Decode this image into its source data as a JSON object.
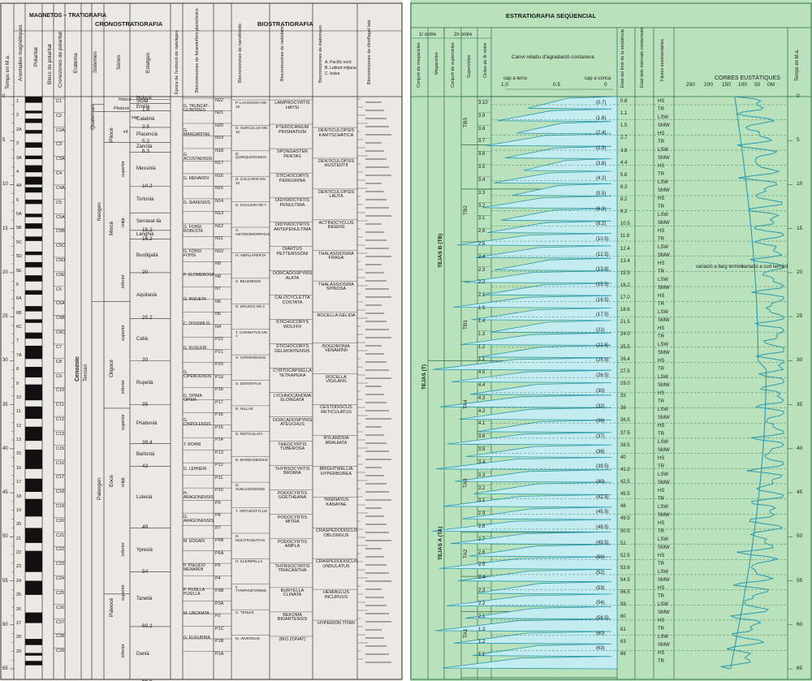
{
  "left_chart": {
    "header": {
      "magnetostratigraphy": "MAGNETOS – TRATIGRAFIA",
      "chronostratigraphy": "CRONOSTRATIGRAFIA",
      "biostratigraphy": "BIOSTRATIGRAFIA"
    },
    "column_labels": {
      "time": "Temps en M.a.",
      "anomalies": "Anomalies magnètiques",
      "polarity": "Polaritat",
      "polarity_blocks": "Blocs de polaritat",
      "polarity_chrons": "Cronozones de polaritat",
      "eratem": "Eratema",
      "systems": "Sistemes",
      "series": "Sèries",
      "stages": "Estatges",
      "extinction": "Època de l'extinció de natelàges",
      "foram_zones": "Biocronozones de foraminífers planctònics",
      "nanno_zones": "Biocronozones de nanofòssils",
      "radiolaria_zones": "Biocronozones de radiolaris",
      "diatom_zones": "Biocronozones de diatomees",
      "diatom_sub": [
        "A. Pacífic nord",
        "B. Latitud mitjana",
        "C. baixa"
      ],
      "dino_zones": "Biocronozones de dinoflagel·lats"
    },
    "time_ticks": [
      "0",
      "5",
      "10",
      "15",
      "20",
      "25",
      "30",
      "35",
      "40",
      "45",
      "50",
      "55",
      "60",
      "65"
    ],
    "eras": [
      "Cenozoic"
    ],
    "systems": [
      "Quaternari",
      "Terciari",
      "Neogen",
      "Paleogen"
    ],
    "series": [
      "Holocè",
      "Plistocè",
      "Pliocè",
      "Miocè",
      "Oligocè",
      "Eocè",
      "Paleocè"
    ],
    "subseries": [
      "sup.",
      "inf.",
      "superior",
      "mitjà",
      "inferior",
      "superior",
      "inferior",
      "superior",
      "mitjà",
      "inferior",
      "superior",
      "inferior"
    ],
    "stages": [
      {
        "name": "Holocè",
        "age": ""
      },
      {
        "name": "Siciià",
        "age": ""
      },
      {
        "name": "Emilià",
        "age": ""
      },
      {
        "name": "Calabrià",
        "age": "1.6"
      },
      {
        "name": "Placencià",
        "age": "3.5"
      },
      {
        "name": "Zanclià",
        "age": "5.2"
      },
      {
        "name": "Messinià",
        "age": "6.3"
      },
      {
        "name": "Tortonià",
        "age": "10.2"
      },
      {
        "name": "Serraval·lià",
        "age": ""
      },
      {
        "name": "Langhià",
        "age": "15.2"
      },
      {
        "name": "Burdigalià",
        "age": "16.2"
      },
      {
        "name": "Aquitanià",
        "age": "20"
      },
      {
        "name": "Catià",
        "age": "25.2"
      },
      {
        "name": "Rupelià",
        "age": "30"
      },
      {
        "name": "Priabonià",
        "age": "35"
      },
      {
        "name": "Bartonià",
        "age": "39.4"
      },
      {
        "name": "Lutecià",
        "age": "42"
      },
      {
        "name": "Ypresià",
        "age": "49"
      },
      {
        "name": "Tanetià",
        "age": "54"
      },
      {
        "name": "Danià",
        "age": "60.2"
      },
      {
        "name": "",
        "age": "66.5"
      }
    ],
    "polarity_numbers": [
      "1",
      "2",
      "2A",
      "3",
      "3A",
      "4",
      "4A",
      "5",
      "5A",
      "5B",
      "5C",
      "5D",
      "5E",
      "6",
      "6A",
      "6B",
      "6C",
      "7",
      "7A",
      "8",
      "9",
      "10",
      "11",
      "12",
      "13",
      "15",
      "16",
      "17",
      "18",
      "19",
      "20",
      "21",
      "22",
      "23",
      "24",
      "25",
      "26",
      "27",
      "28",
      "29"
    ],
    "chrons": [
      "C1",
      "C2",
      "C2A",
      "C3",
      "C3A",
      "C4",
      "C4A",
      "C5",
      "C5A",
      "C5B",
      "C5C",
      "C5D",
      "C5E",
      "C6",
      "C6A",
      "C6B",
      "C6C",
      "C7",
      "C8",
      "C9",
      "C10",
      "C11",
      "C12",
      "C13",
      "C15",
      "C16",
      "C17",
      "C18",
      "C19",
      "C20",
      "C21",
      "C22",
      "C23",
      "C24",
      "C25",
      "C26",
      "C27",
      "C28",
      "C29"
    ],
    "foram_zones": [
      "N22",
      "N21",
      "N20",
      "N19",
      "N18",
      "N17",
      "N16",
      "N15",
      "N14",
      "N13",
      "N12",
      "N11",
      "N10",
      "N9",
      "N8",
      "N7",
      "N6",
      "N5",
      "N4",
      "P22",
      "P21",
      "P20",
      "P19",
      "P18",
      "P17",
      "P16",
      "P15",
      "P14",
      "P13",
      "P12",
      "P11",
      "P10",
      "P9",
      "P8",
      "P7",
      "P6B",
      "P6A",
      "P5",
      "P4",
      "P3B",
      "P3A",
      "P2",
      "P1C",
      "P1B",
      "P1A"
    ],
    "foram_names": [
      "G. TRUNCAT-ULINOIDES",
      "G. MARGARITAE",
      "G. ACOSTAENSIS",
      "G. MENARDII",
      "G. SIAKENSIS",
      "G. FOHSI ROBUSTA",
      "G. FOHSI FOHSI",
      "P. GLOMEROSA",
      "G. INSUETA",
      "C. DISSIMILIS",
      "G. KUGLERI",
      "G. CIPEROENSIS",
      "G. OPIMA OPIMA",
      "G. CHIPOLENSIS",
      "T. ROHRI",
      "G. LEHNERI",
      "H. ARAGONENSIS",
      "G. ARAGONENSIS",
      "M. EDGARI",
      "P. PSEUDO MENARDII",
      "P. PUSILLA PUSILLA",
      "M. UNCINATA",
      "G. EUGUBINA"
    ],
    "nanno_zones": [
      "P. LACUNOSA NN 19",
      "D. SURCULUS NN 16",
      "D. QUINQUERAMUS",
      "D. CALCARIS NN 10",
      "D. KUGLERI NN 7",
      "S. HETEROMORPHUS",
      "H. AMPLIAPERTA",
      "S. BELEMNOS",
      "D. DRUGGI NN 2",
      "T. CARINATUS NN 1",
      "S. CIPEROENSIS",
      "S. DISTENTUS",
      "R. HILLAE",
      "D. RETICULATA",
      "D. BARBADIENSIS",
      "D. SUBLODOENSIS",
      "T. ORTHOSTYLUS",
      "D. MULTIRADIATUS",
      "H. KLEINPELLII",
      "F. TYMPANIFORMIS",
      "C. TENUIS",
      "M. INVERSUS"
    ],
    "radiolaria_zones": [
      "LAMPROCYRTIS HAYSI",
      "PTEROCANIUM PRISMATIUM",
      "SPONGASTER PENTAS",
      "STICHOCORYS PEREGRINA",
      "DIDYMOCYRTIS PENULTIMA",
      "DIDYMOCYRTIS ANTEPENULTIMA",
      "DIARTUS PETTERSSONI",
      "DORCADOSPYRIS ALATA",
      "CALOCYCLETTA COSTATA",
      "STICHOCORYS WOLFFII",
      "STICHOCORYS DELMONTENSIS",
      "CYRTOCAPSELLA TETRAPERA",
      "LYCHNOCANOMA ELONGATA",
      "DORCADOSPYRIS ATEUCHUS",
      "THEOCYRTIS TUBEROSA",
      "THYRSOCYRTIS BROMIA",
      "PODOCYRTIS GOETHEANA",
      "PODOCYRTIS MITRA",
      "PODOCYRTIS AMPLA",
      "THYRSOCYRTIS TRIACANTHA",
      "BURYELLA CLINATA",
      "BEKOMA BIDARTENSIS",
      "(BIO ZONAT)"
    ],
    "diatom_zones": [
      "DENTICULOPSIS KAMTSCHATICA",
      "DENTICULOPSIS HUSTEDTII",
      "DENTICULOPSIS LAUTA",
      "ACTINOCYCLUS INGENS",
      "THALASSIOSIRA FRAGA",
      "THALASSIOSIRA SPINOSA",
      "ROCELLA GELIDA",
      "BOGORONIA VENAMINII",
      "ROCELLA VIGILANS",
      "CESTODISCUS RETICULATUS",
      "RYLANDSIA BRAUIATA",
      "BRIGHTWELLIA HYPERBOREA",
      "TRIENATUS KANAYAE",
      "CRASPEDODISCUS OBLONGUS",
      "CRASPEDODISCUS UNDULATUS",
      "HEMIAULUS INCURVUS",
      "HYPERION TITAN"
    ]
  },
  "right_chart": {
    "header": {
      "sequence_stratigraphy": "ESTRATIGRAFIA SEQÜENCIAL",
      "first_order": "1r ordre",
      "second_order": "2n ordre",
      "megacycles": "Conjunt de megacicles",
      "megacycle": "Megacicles",
      "supercycle_sets": "Conjunt de supercicles",
      "supercycles": "Supercicles",
      "third_order_cycles": "Cicles de 3r ordre",
      "aggradation_title": "Canvi relatiu d'agradació costanera",
      "toward_land": "cap a terra",
      "toward_basin": "cap a conca",
      "age_of_boundary": "Edat del límit de la seqüència",
      "age_condensed": "Edat dels intervals condensats",
      "system_tracts": "Fàcies sedimentàries",
      "eustatic_curves": "CORBES EUSTÀTIQUES",
      "time": "Temps en M.a."
    },
    "aggradation_scale": [
      "1.0",
      "0.5",
      "0"
    ],
    "eustatic_scale": [
      "250",
      "200",
      "150",
      "100",
      "50",
      "0M"
    ],
    "time_ticks": [
      "0",
      "5",
      "10",
      "15",
      "20",
      "25",
      "30",
      "35",
      "40",
      "45",
      "50",
      "55",
      "60",
      "65"
    ],
    "megacycle_sets": [
      "TEJAS (T)"
    ],
    "megacycles": [
      "TEJAS B (TB)",
      "TEJAS A (TA)"
    ],
    "supercycles": [
      "TB3",
      "TB2",
      "TB1",
      "TA4",
      "TA3",
      "TA2",
      "TA1"
    ],
    "third_order_cycles": [
      "3.10",
      "3.9",
      "3.8",
      "3.7",
      "3.6",
      "3.5",
      "3.4",
      "3.3",
      "3.2",
      "3.1",
      "2.6",
      "2.5",
      "2.4",
      "2.3",
      "2.2",
      "2.1",
      "1.5",
      "1.4",
      "1.3",
      "1.2",
      "1.1",
      "4.5",
      "4.4",
      "4.3",
      "4.2",
      "4.1",
      "3.6",
      "3.5",
      "3.4",
      "3.3",
      "3.2",
      "3.1",
      "2.9",
      "2.8",
      "2.7",
      "2.6",
      "2.5",
      "2.4",
      "2.3",
      "2.2",
      "2.1",
      "1.3",
      "1.2",
      "1.1"
    ],
    "boundary_ages": [
      "(0.7)",
      "(1.6)",
      "(2.4)",
      "(2.9)",
      "(3.8)",
      "(4.2)",
      "(5.5)",
      "(6.3)",
      "(8.2)",
      "(10.5)",
      "(12.5)",
      "(13.8)",
      "(15.5)",
      "(16.5)",
      "(17.5)",
      "(21)",
      "(22.5)",
      "(25.5)",
      "(26.5)",
      "(30)",
      "(32)",
      "(36)",
      "(37)",
      "(38)",
      "(39.5)",
      "(40)",
      "(42.5)",
      "(45.5)",
      "(48.5)",
      "(49.5)",
      "(50)",
      "(52)",
      "(53)",
      "(54)",
      "(58.5)",
      "(60)",
      "(63)"
    ],
    "condensed_ages": [
      "0.8",
      "1.1",
      "1.5",
      "2.7",
      "3.8",
      "4.4",
      "5.8",
      "6.3",
      "8.2",
      "9.2",
      "10.5",
      "11.6",
      "12.4",
      "13.4",
      "15.5",
      "16.2",
      "17.0",
      "18.6",
      "21.5",
      "24.0",
      "25.5",
      "26.4",
      "27.5",
      "29.0",
      "33",
      "38",
      "36.5",
      "37.5",
      "38.5",
      "40",
      "41.2",
      "42.5",
      "45.5",
      "48",
      "49.5",
      "50.5",
      "51",
      "52.5",
      "53.6",
      "54.5",
      "56.5",
      "59",
      "60",
      "61",
      "63",
      "66"
    ],
    "facies": [
      "HS",
      "TR",
      "LSW",
      "SMW"
    ],
    "annotations": {
      "long_term": "variació a llarg termini",
      "short_term": "variació a curt termini"
    },
    "colors": {
      "background": "#b9e1bc",
      "curve_fill": "#c3ecf0",
      "curve_line": "#2a9ab0"
    }
  }
}
